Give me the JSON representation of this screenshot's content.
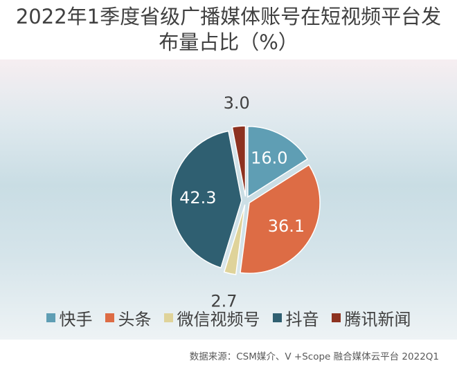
{
  "title_line1": "2022年1季度省级广播媒体账号在短视频平台发",
  "title_line2": "布量占比（%）",
  "source": "数据来源：CSM媒介、V +Scope 融合媒体云平台 2022Q1",
  "chart_data": {
    "type": "pie",
    "title": "2022年1季度省级广播媒体账号在短视频平台发布量占比（%）",
    "categories": [
      "快手",
      "头条",
      "微信视频号",
      "抖音",
      "腾讯新闻"
    ],
    "values": [
      16.0,
      36.1,
      2.7,
      42.3,
      3.0
    ],
    "labels": [
      "16.0",
      "36.1",
      "2.7",
      "42.3",
      "3.0"
    ],
    "colors": [
      "#5f9eb4",
      "#dd6c45",
      "#dfd39a",
      "#2f5f71",
      "#8d3220"
    ],
    "legend": "bottom",
    "exploded": true
  }
}
